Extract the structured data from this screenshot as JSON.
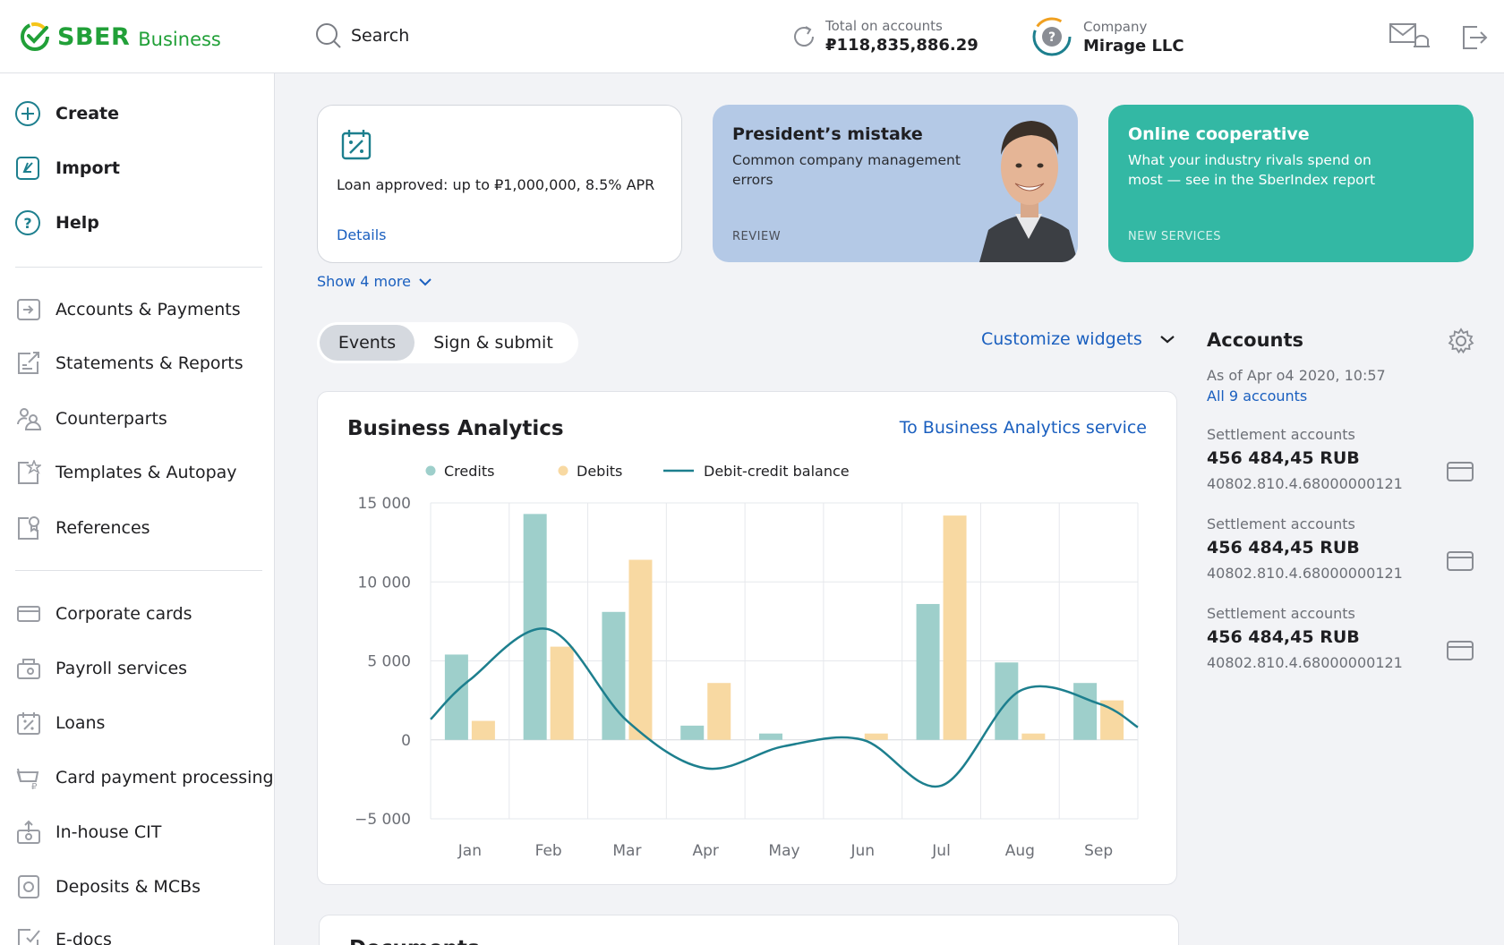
{
  "header": {
    "logo_sber": "SBER",
    "logo_business": "Business",
    "search_label": "Search",
    "total_label": "Total on accounts",
    "total_value": "₽118,835,886.29",
    "company_label": "Company",
    "company_name": "Mirage LLC"
  },
  "sidebar": {
    "top_items": [
      {
        "label": "Create",
        "icon": "plus-circle-icon"
      },
      {
        "label": "Import",
        "icon": "import-icon"
      },
      {
        "label": "Help",
        "icon": "help-icon"
      }
    ],
    "items": [
      {
        "label": "Accounts & Payments",
        "icon": "accounts-icon"
      },
      {
        "label": "Statements & Reports",
        "icon": "statements-icon"
      },
      {
        "label": "Counterparts",
        "icon": "counterparts-icon"
      },
      {
        "label": "Templates & Autopay",
        "icon": "templates-icon"
      },
      {
        "label": "References",
        "icon": "references-icon"
      },
      {
        "label": "Corporate cards",
        "icon": "card-icon"
      },
      {
        "label": "Payroll services",
        "icon": "payroll-icon"
      },
      {
        "label": "Loans",
        "icon": "loans-icon"
      },
      {
        "label": "Card payment processing",
        "icon": "card-processing-icon"
      },
      {
        "label": "In-house CIT",
        "icon": "cit-icon"
      },
      {
        "label": "Deposits & MCBs",
        "icon": "deposits-icon"
      },
      {
        "label": "E-docs",
        "icon": "edocs-icon"
      }
    ]
  },
  "promos": {
    "loan_text": "Loan approved: up to ₽1,000,000, 8.5% APR",
    "loan_link": "Details",
    "review_title": "President’s mistake",
    "review_sub": "Common company management errors",
    "review_tag": "REVIEW",
    "coop_title": "Online cooperative",
    "coop_sub": "What your industry rivals spend on most — see in the SberIndex report",
    "coop_tag": "NEW SERVICES",
    "show_more": "Show 4 more"
  },
  "tabs": {
    "events": "Events",
    "sign": "Sign & submit"
  },
  "customize_label": "Customize widgets",
  "analytics": {
    "title": "Business Analytics",
    "link": "To Business Analytics service"
  },
  "docs_title": "Documents",
  "accounts": {
    "title": "Accounts",
    "as_of": "As of Apr o4 2020, 10:57",
    "all_link": "All 9 accounts",
    "items": [
      {
        "type": "Settlement accounts",
        "amount": "456 484,45 RUB",
        "number": "40802.810.4.68000000121"
      },
      {
        "type": "Settlement accounts",
        "amount": "456 484,45 RUB",
        "number": "40802.810.4.68000000121"
      },
      {
        "type": "Settlement accounts",
        "amount": "456 484,45 RUB",
        "number": "40802.810.4.68000000121"
      }
    ]
  },
  "colors": {
    "brand": "#21a038",
    "link": "#1a5fbf",
    "credits": "#9ecfcb",
    "debits": "#f8d9a2",
    "balance": "#1d7f8e",
    "review_bg": "#b4c9e6",
    "coop_bg": "#33b8a4"
  },
  "chart_data": {
    "type": "bar",
    "categories": [
      "Jan",
      "Feb",
      "Mar",
      "Apr",
      "May",
      "Jun",
      "Jul",
      "Aug",
      "Sep"
    ],
    "series": [
      {
        "name": "Credits",
        "values": [
          5400,
          14300,
          8100,
          900,
          400,
          0,
          8600,
          4900,
          3600
        ]
      },
      {
        "name": "Debits",
        "values": [
          1200,
          5900,
          11400,
          3600,
          0,
          400,
          14200,
          400,
          2500
        ]
      },
      {
        "name": "Debit-credit balance",
        "type": "line",
        "values": [
          3800,
          7000,
          1200,
          -1800,
          -400,
          0,
          -2900,
          3100,
          2300
        ]
      }
    ],
    "yticks": [
      "15 000",
      "10 000",
      "5 000",
      "0",
      "−5 000"
    ],
    "ylim": [
      -5000,
      15000
    ],
    "legend_position": "top-left",
    "grid": true
  }
}
